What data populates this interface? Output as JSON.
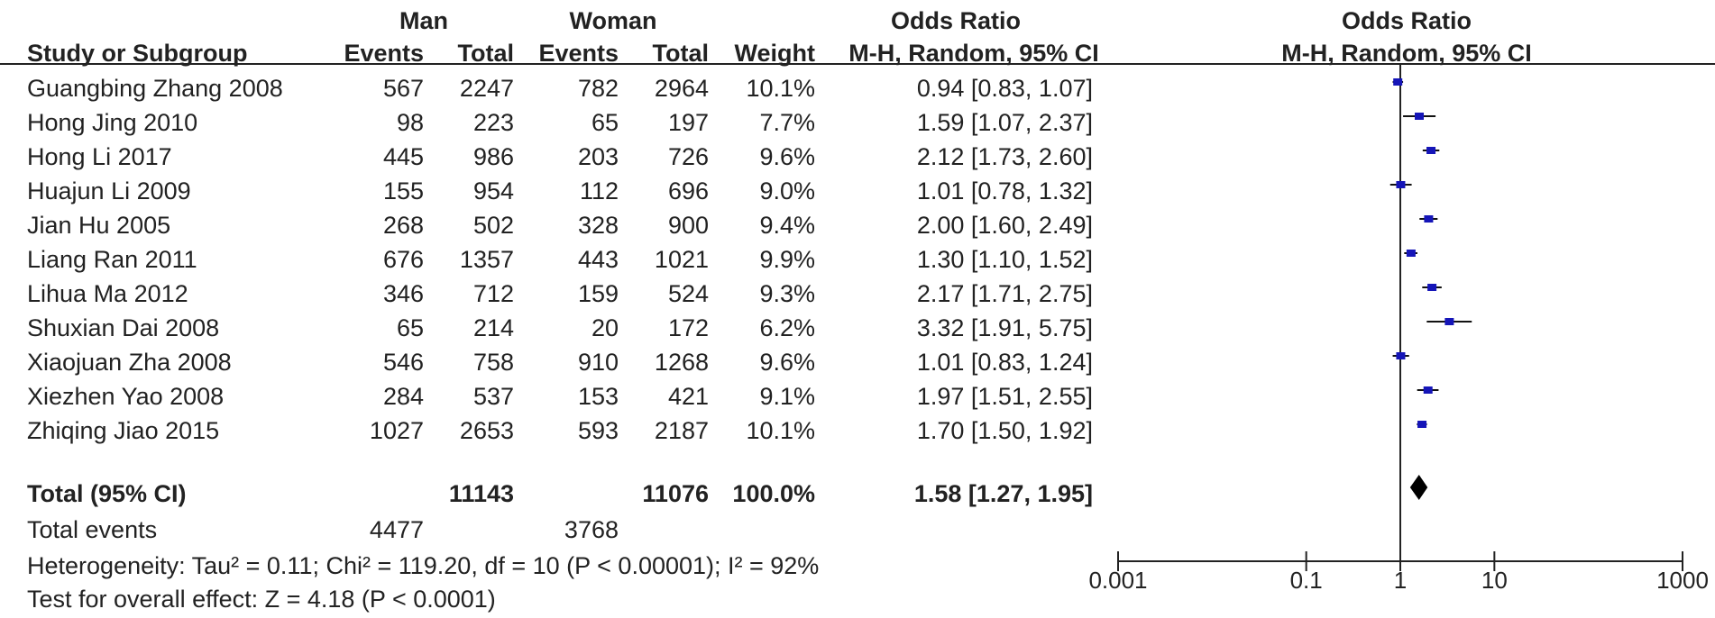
{
  "headers": {
    "group1": "Man",
    "group2": "Woman",
    "or_table_title": "Odds Ratio",
    "or_plot_title": "Odds Ratio",
    "study": "Study or Subgroup",
    "events1": "Events",
    "total1": "Total",
    "events2": "Events",
    "total2": "Total",
    "weight": "Weight",
    "method_table": "M-H, Random, 95% CI",
    "method_plot": "M-H, Random, 95% CI"
  },
  "studies": [
    {
      "name": "Guangbing Zhang 2008",
      "e1": "567",
      "t1": "2247",
      "e2": "782",
      "t2": "2964",
      "weight": "10.1%",
      "ci": "0.94 [0.83, 1.07]"
    },
    {
      "name": "Hong Jing 2010",
      "e1": "98",
      "t1": "223",
      "e2": "65",
      "t2": "197",
      "weight": "7.7%",
      "ci": "1.59 [1.07, 2.37]"
    },
    {
      "name": "Hong Li 2017",
      "e1": "445",
      "t1": "986",
      "e2": "203",
      "t2": "726",
      "weight": "9.6%",
      "ci": "2.12 [1.73, 2.60]"
    },
    {
      "name": "Huajun Li 2009",
      "e1": "155",
      "t1": "954",
      "e2": "112",
      "t2": "696",
      "weight": "9.0%",
      "ci": "1.01 [0.78, 1.32]"
    },
    {
      "name": "Jian Hu 2005",
      "e1": "268",
      "t1": "502",
      "e2": "328",
      "t2": "900",
      "weight": "9.4%",
      "ci": "2.00 [1.60, 2.49]"
    },
    {
      "name": "Liang Ran 2011",
      "e1": "676",
      "t1": "1357",
      "e2": "443",
      "t2": "1021",
      "weight": "9.9%",
      "ci": "1.30 [1.10, 1.52]"
    },
    {
      "name": "Lihua Ma 2012",
      "e1": "346",
      "t1": "712",
      "e2": "159",
      "t2": "524",
      "weight": "9.3%",
      "ci": "2.17 [1.71, 2.75]"
    },
    {
      "name": "Shuxian Dai 2008",
      "e1": "65",
      "t1": "214",
      "e2": "20",
      "t2": "172",
      "weight": "6.2%",
      "ci": "3.32 [1.91, 5.75]"
    },
    {
      "name": "Xiaojuan Zha 2008",
      "e1": "546",
      "t1": "758",
      "e2": "910",
      "t2": "1268",
      "weight": "9.6%",
      "ci": "1.01 [0.83, 1.24]"
    },
    {
      "name": "Xiezhen Yao 2008",
      "e1": "284",
      "t1": "537",
      "e2": "153",
      "t2": "421",
      "weight": "9.1%",
      "ci": "1.97 [1.51, 2.55]"
    },
    {
      "name": "Zhiqing Jiao 2015",
      "e1": "1027",
      "t1": "2653",
      "e2": "593",
      "t2": "2187",
      "weight": "10.1%",
      "ci": "1.70 [1.50, 1.92]"
    }
  ],
  "total": {
    "label": "Total (95% CI)",
    "t1": "11143",
    "t2": "11076",
    "weight": "100.0%",
    "ci": "1.58 [1.27, 1.95]"
  },
  "total_events": {
    "label": "Total events",
    "e1": "4477",
    "e2": "3768"
  },
  "heterogeneity": "Heterogeneity: Tau² = 0.11; Chi² = 119.20, df = 10 (P < 0.00001); I² = 92%",
  "overall_effect": "Test for overall effect: Z = 4.18 (P < 0.0001)",
  "chart_data": {
    "type": "scatter",
    "scale": "log",
    "xlim": [
      0.001,
      1000
    ],
    "ticks": [
      "0.001",
      "0.1",
      "1",
      "10",
      "1000"
    ],
    "tick_values": [
      0.001,
      0.1,
      1,
      10,
      1000
    ],
    "reference_line": 1,
    "marker_color": "#1515b8",
    "points": [
      {
        "label": "Guangbing Zhang 2008",
        "or": 0.94,
        "low": 0.83,
        "high": 1.07
      },
      {
        "label": "Hong Jing 2010",
        "or": 1.59,
        "low": 1.07,
        "high": 2.37
      },
      {
        "label": "Hong Li 2017",
        "or": 2.12,
        "low": 1.73,
        "high": 2.6
      },
      {
        "label": "Huajun Li 2009",
        "or": 1.01,
        "low": 0.78,
        "high": 1.32
      },
      {
        "label": "Jian Hu 2005",
        "or": 2.0,
        "low": 1.6,
        "high": 2.49
      },
      {
        "label": "Liang Ran 2011",
        "or": 1.3,
        "low": 1.1,
        "high": 1.52
      },
      {
        "label": "Lihua Ma 2012",
        "or": 2.17,
        "low": 1.71,
        "high": 2.75
      },
      {
        "label": "Shuxian Dai 2008",
        "or": 3.32,
        "low": 1.91,
        "high": 5.75
      },
      {
        "label": "Xiaojuan Zha 2008",
        "or": 1.01,
        "low": 0.83,
        "high": 1.24
      },
      {
        "label": "Xiezhen Yao 2008",
        "or": 1.97,
        "low": 1.51,
        "high": 2.55
      },
      {
        "label": "Zhiqing Jiao 2015",
        "or": 1.7,
        "low": 1.5,
        "high": 1.92
      }
    ],
    "pooled": {
      "or": 1.58,
      "low": 1.27,
      "high": 1.95
    }
  }
}
